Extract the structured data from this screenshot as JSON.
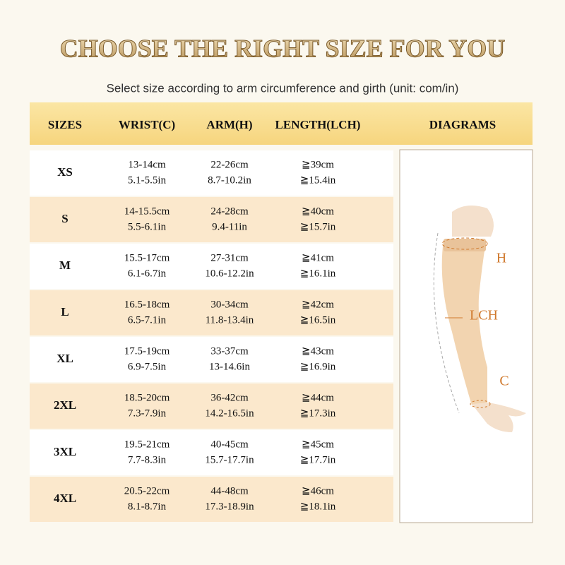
{
  "header": {
    "title": "CHOOSE THE RIGHT SIZE FOR YOU",
    "subtitle": "Select size according to arm circumference and girth (unit: com/in)"
  },
  "table": {
    "columns": [
      "SIZES",
      "WRIST(C)",
      "ARM(H)",
      "LENGTH(LCH)",
      "DIAGRAMS"
    ],
    "rows": [
      {
        "size": "XS",
        "wrist": [
          "13-14cm",
          "5.1-5.5in"
        ],
        "arm": [
          "22-26cm",
          "8.7-10.2in"
        ],
        "length": [
          "≧39cm",
          "≧15.4in"
        ]
      },
      {
        "size": "S",
        "wrist": [
          "14-15.5cm",
          "5.5-6.1in"
        ],
        "arm": [
          "24-28cm",
          "9.4-11in"
        ],
        "length": [
          "≧40cm",
          "≧15.7in"
        ]
      },
      {
        "size": "M",
        "wrist": [
          "15.5-17cm",
          "6.1-6.7in"
        ],
        "arm": [
          "27-31cm",
          "10.6-12.2in"
        ],
        "length": [
          "≧41cm",
          "≧16.1in"
        ]
      },
      {
        "size": "L",
        "wrist": [
          "16.5-18cm",
          "6.5-7.1in"
        ],
        "arm": [
          "30-34cm",
          "11.8-13.4in"
        ],
        "length": [
          "≧42cm",
          "≧16.5in"
        ]
      },
      {
        "size": "XL",
        "wrist": [
          "17.5-19cm",
          "6.9-7.5in"
        ],
        "arm": [
          "33-37cm",
          "13-14.6in"
        ],
        "length": [
          "≧43cm",
          "≧16.9in"
        ]
      },
      {
        "size": "2XL",
        "wrist": [
          "18.5-20cm",
          "7.3-7.9in"
        ],
        "arm": [
          "36-42cm",
          "14.2-16.5in"
        ],
        "length": [
          "≧44cm",
          "≧17.3in"
        ]
      },
      {
        "size": "3XL",
        "wrist": [
          "19.5-21cm",
          "7.7-8.3in"
        ],
        "arm": [
          "40-45cm",
          "15.7-17.7in"
        ],
        "length": [
          "≧45cm",
          "≧17.7in"
        ]
      },
      {
        "size": "4XL",
        "wrist": [
          "20.5-22cm",
          "8.1-8.7in"
        ],
        "arm": [
          "44-48cm",
          "17.3-18.9in"
        ],
        "length": [
          "≧46cm",
          "≧18.1in"
        ]
      }
    ]
  },
  "diagram": {
    "labels": [
      "H",
      "LCH",
      "C"
    ]
  }
}
